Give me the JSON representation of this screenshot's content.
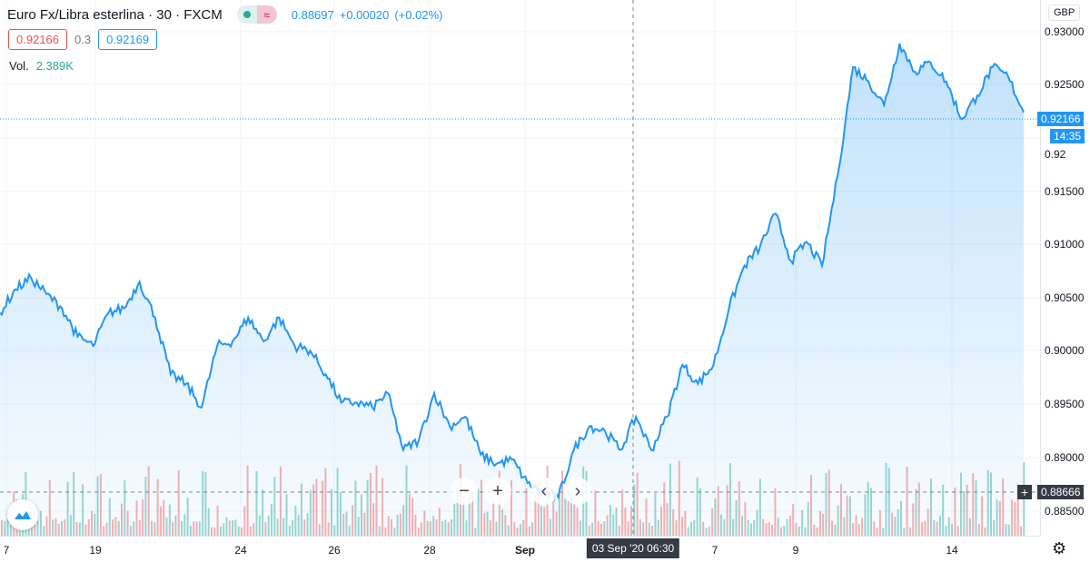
{
  "header": {
    "title": "Euro Fx/Libra esterlina · 30 · FXCM",
    "last": "0.88697",
    "change": "+0.00020",
    "change_pct": "(+0.02%)"
  },
  "trade": {
    "sell": "0.92166",
    "spread": "0.3",
    "buy": "0.92169"
  },
  "volume": {
    "label": "Vol.",
    "value": "2.389K"
  },
  "price_axis": {
    "currency": "GBP",
    "ticks": [
      "0.93000",
      "0.92500",
      "0.92",
      "0.91500",
      "0.91000",
      "0.90500",
      "0.90000",
      "0.89500",
      "0.89000",
      "0.88500"
    ],
    "current_price": "0.92166",
    "countdown": "14:35",
    "crosshair_price": "0.88666"
  },
  "time_axis": {
    "ticks": [
      "7",
      "19",
      "24",
      "26",
      "28",
      "Sep",
      "7",
      "9",
      "14"
    ],
    "crosshair_time": "03 Sep '20  06:30"
  },
  "colors": {
    "line": "#2196f3",
    "up": "#26a69a",
    "down": "#ef5350",
    "crosshair_label": "#363a45"
  },
  "icons": {
    "settings": "gear-icon",
    "logo": "tradingview-cloud-icon"
  },
  "chart_data": {
    "type": "area",
    "ylim": [
      0.8835,
      0.9318
    ],
    "prices": [
      0.90359,
      0.90572,
      0.90674,
      0.90529,
      0.90401,
      0.90146,
      0.90061,
      0.90359,
      0.90401,
      0.9064,
      0.90316,
      0.89805,
      0.8972,
      0.89507,
      0.90061,
      0.90103,
      0.90316,
      0.90103,
      0.90316,
      0.90061,
      0.90018,
      0.89805,
      0.8955,
      0.8955,
      0.89507,
      0.89635,
      0.89123,
      0.89209,
      0.89635,
      0.89336,
      0.89422,
      0.89081,
      0.88996,
      0.89038,
      0.88825,
      0.8874,
      0.88697,
      0.89123,
      0.89336,
      0.89294,
      0.89123,
      0.89422,
      0.89123,
      0.89422,
      0.8989,
      0.8972,
      0.8989,
      0.90401,
      0.90785,
      0.90955,
      0.91253,
      0.90827,
      0.90998,
      0.90785,
      0.91594,
      0.92574,
      0.92446,
      0.92233,
      0.92787,
      0.92531,
      0.92617,
      0.92446,
      0.92105,
      0.92318,
      0.92574,
      0.92489,
      0.92166
    ]
  }
}
